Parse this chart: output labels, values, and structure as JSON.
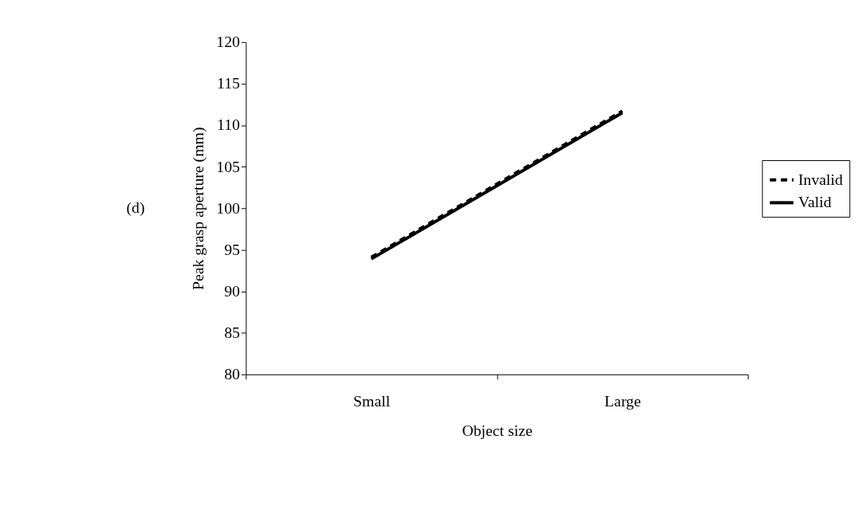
{
  "chart_data": {
    "type": "line",
    "xlabel": "Object size",
    "ylabel": "Peak grasp aperture (mm)",
    "categories": [
      "Small",
      "Large"
    ],
    "series": [
      {
        "name": "Invalid",
        "color": "#000000",
        "line_style": "dashed",
        "values": [
          94.1,
          111.7
        ]
      },
      {
        "name": "Valid",
        "color": "#000000",
        "line_style": "solid",
        "values": [
          93.9,
          111.5
        ]
      }
    ],
    "ylim": [
      80,
      120
    ],
    "yticks": [
      80,
      85,
      90,
      95,
      100,
      105,
      110,
      115,
      120
    ],
    "grid": false,
    "legend": "right",
    "marker": "none",
    "annotations": [
      "(d)"
    ]
  }
}
